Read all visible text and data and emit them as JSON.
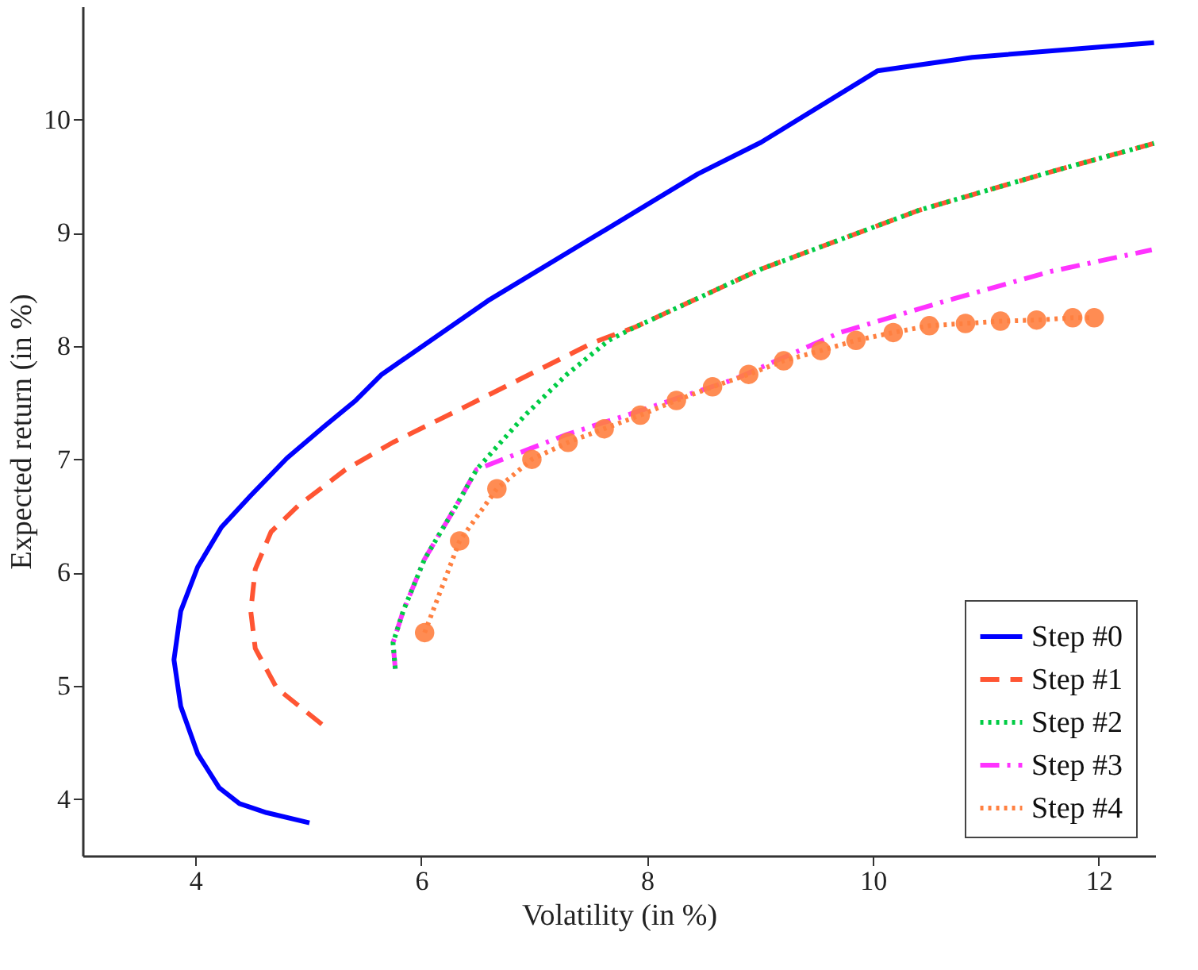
{
  "chart_data": {
    "type": "line",
    "xlabel": "Volatility (in %)",
    "ylabel": "Expected return (in %)",
    "xlim": [
      3,
      12.5
    ],
    "ylim": [
      3.5,
      11
    ],
    "xticks": [
      4,
      6,
      8,
      10,
      12
    ],
    "yticks": [
      4,
      5,
      6,
      7,
      8,
      9,
      10
    ],
    "grid": false,
    "legend": "bottom right",
    "series": [
      {
        "name": "Step #0",
        "color": "#0000ff",
        "line_style": "solid",
        "marker": "none",
        "x": [
          5.01,
          4.63,
          4.39,
          4.21,
          4.02,
          3.87,
          3.81,
          3.87,
          4.02,
          4.23,
          4.49,
          4.81,
          5.14,
          5.42,
          5.65,
          6.59,
          7.52,
          8.45,
          9.01,
          10.04,
          10.88,
          12.49
        ],
        "values": [
          3.79,
          3.88,
          3.96,
          4.1,
          4.4,
          4.82,
          5.23,
          5.66,
          6.05,
          6.4,
          6.68,
          7.01,
          7.29,
          7.52,
          7.75,
          8.4,
          8.96,
          9.52,
          9.8,
          10.43,
          10.55,
          10.68
        ]
      },
      {
        "name": "Step #1",
        "color": "#ff5533",
        "line_style": "dashed",
        "marker": "none",
        "x": [
          5.12,
          4.72,
          4.53,
          4.49,
          4.53,
          4.67,
          4.91,
          5.33,
          5.75,
          6.4,
          7.52,
          7.9,
          9.01,
          10.41,
          11.58,
          12.49
        ],
        "values": [
          4.66,
          4.98,
          5.33,
          5.66,
          6.03,
          6.36,
          6.59,
          6.91,
          7.15,
          7.47,
          8.03,
          8.17,
          8.68,
          9.2,
          9.54,
          9.79
        ]
      },
      {
        "name": "Step #2",
        "color": "#00cc44",
        "line_style": "dotted",
        "marker": "none",
        "x": [
          5.77,
          5.75,
          5.84,
          6.03,
          6.31,
          6.49,
          6.91,
          7.29,
          7.66,
          7.9,
          9.01,
          10.41,
          11.58,
          12.49
        ],
        "values": [
          5.15,
          5.38,
          5.66,
          6.12,
          6.59,
          6.91,
          7.38,
          7.75,
          8.05,
          8.17,
          8.68,
          9.2,
          9.54,
          9.79
        ]
      },
      {
        "name": "Step #3",
        "color": "#ff33ff",
        "line_style": "dashdot",
        "marker": "none",
        "x": [
          5.77,
          5.75,
          5.84,
          6.03,
          6.31,
          6.49,
          7.29,
          7.85,
          8.78,
          9.71,
          10.65,
          11.58,
          12.47
        ],
        "values": [
          5.15,
          5.38,
          5.66,
          6.12,
          6.59,
          6.91,
          7.22,
          7.4,
          7.71,
          8.12,
          8.4,
          8.66,
          8.85
        ]
      },
      {
        "name": "Step #4",
        "color": "#ff8040",
        "line_style": "dotted",
        "marker": "circle",
        "x": [
          6.03,
          6.34,
          6.67,
          6.98,
          7.3,
          7.62,
          7.94,
          8.26,
          8.58,
          8.9,
          9.21,
          9.54,
          9.85,
          10.18,
          10.5,
          10.82,
          11.13,
          11.45,
          11.77,
          11.96
        ],
        "values": [
          5.47,
          6.28,
          6.74,
          7.0,
          7.15,
          7.27,
          7.39,
          7.52,
          7.64,
          7.75,
          7.87,
          7.96,
          8.05,
          8.12,
          8.18,
          8.2,
          8.22,
          8.23,
          8.25,
          8.25
        ]
      }
    ]
  }
}
